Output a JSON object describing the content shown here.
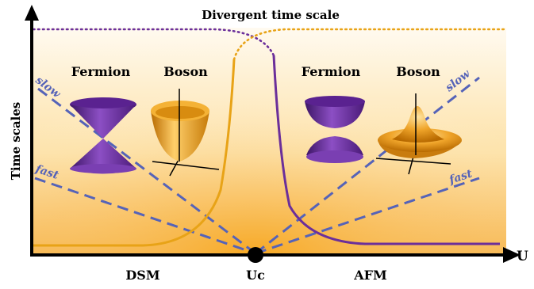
{
  "title": "Divergent time scale",
  "y_axis_label": "Time scales",
  "x_axis_label": "U",
  "critical_point_label": "Uc",
  "phase_left": "DSM",
  "phase_right": "AFM",
  "left_panel": {
    "fermion_label": "Fermion",
    "boson_label": "Boson"
  },
  "right_panel": {
    "fermion_label": "Fermion",
    "boson_label": "Boson"
  },
  "left_slow_label": "slow",
  "left_fast_label": "fast",
  "right_slow_label": "slow",
  "right_fast_label": "fast",
  "colors": {
    "purple": "#6b2f9a",
    "orange": "#e8a317",
    "dash_blue": "#5563b8",
    "background_top": "#fff8ec",
    "background_bottom": "#f7b84a",
    "axis": "#000000"
  }
}
